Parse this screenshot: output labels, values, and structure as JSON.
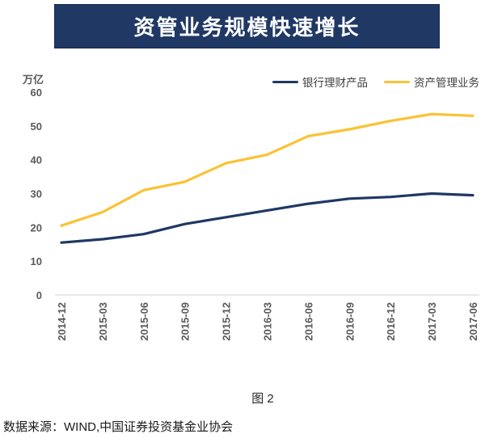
{
  "banner": {
    "title": "资管业务规模快速增长"
  },
  "colors": {
    "banner_bg": "#1F3864",
    "banner_text": "#FFFFFF",
    "axis_line": "#D9D9D9",
    "tick_text": "#595959"
  },
  "chart_data": {
    "type": "line",
    "title": "资管业务规模快速增长",
    "unit_label": "万亿",
    "categories": [
      "2014-12",
      "2015-03",
      "2015-06",
      "2015-09",
      "2015-12",
      "2016-03",
      "2016-06",
      "2016-09",
      "2016-12",
      "2017-03",
      "2017-06"
    ],
    "series": [
      {
        "name": "银行理财产品",
        "color": "#1F3864",
        "values": [
          15.5,
          16.5,
          18,
          21,
          23,
          25,
          27,
          28.5,
          29,
          30,
          29.5
        ]
      },
      {
        "name": "资产管理业务",
        "color": "#FBC232",
        "values": [
          20.5,
          24.5,
          31,
          33.5,
          39,
          41.5,
          47,
          49,
          51.5,
          53.5,
          53
        ]
      }
    ],
    "ylim": [
      0,
      60
    ],
    "ytick_step": 10,
    "grid": false,
    "legend_position": "top-right"
  },
  "caption": {
    "text": "图 2"
  },
  "source": {
    "text": "数据来源：WIND,中国证券投资基金业协会"
  }
}
